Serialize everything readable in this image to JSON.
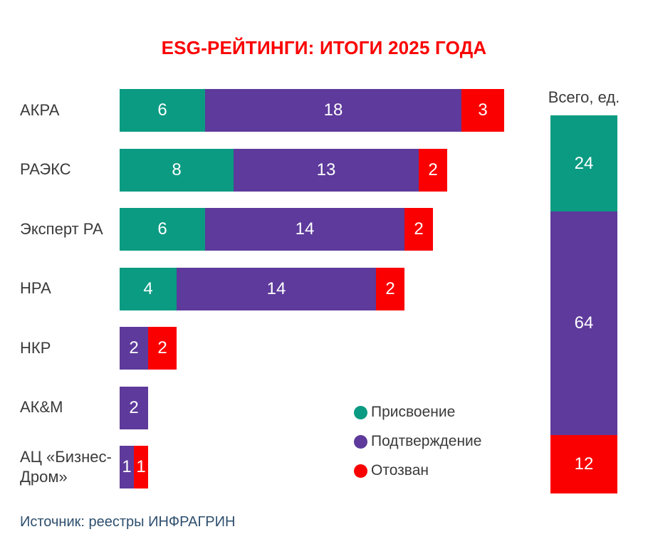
{
  "title": "ESG-РЕЙТИНГИ: ИТОГИ 2025 ГОДА",
  "source": "Источник: реестры ИНФРАГРИН",
  "colors": {
    "assign": "#0a9b82",
    "confirm": "#5d3a9b",
    "revoke": "#fb0000",
    "title_text": "#fa0000",
    "category_label_text": "#3a3a3a",
    "bar_value_text": "#ffffff",
    "source_text": "#2e4f6e"
  },
  "chart_data": {
    "type": "bar",
    "orientation": "horizontal_stacked",
    "grid": false,
    "unit": "ед.",
    "categories": [
      "АКРА",
      "РАЭКС",
      "Эксперт РА",
      "НРА",
      "НКР",
      "АК&М",
      "АЦ «Бизнес-Дром»"
    ],
    "series": [
      {
        "name": "Присвоение",
        "color": "#0a9b82",
        "values": [
          6,
          8,
          6,
          4,
          0,
          0,
          0
        ]
      },
      {
        "name": "Подтверждение",
        "color": "#5d3a9b",
        "values": [
          18,
          13,
          14,
          14,
          2,
          2,
          1
        ]
      },
      {
        "name": "Отозван",
        "color": "#fb0000",
        "values": [
          3,
          2,
          2,
          2,
          2,
          0,
          1
        ]
      }
    ],
    "row_totals": [
      27,
      23,
      22,
      20,
      4,
      2,
      2
    ],
    "totals": {
      "title": "Всего, ед.",
      "segments": [
        {
          "name": "Присвоение",
          "value": 24,
          "color": "#0a9b82"
        },
        {
          "name": "Подтверждение",
          "value": 64,
          "color": "#5d3a9b"
        },
        {
          "name": "Отозван",
          "value": 12,
          "color": "#fb0000"
        }
      ]
    },
    "legend_position": "inside-bottom-right"
  },
  "legend": {
    "items": [
      {
        "label": "Присвоение",
        "color": "#0a9b82"
      },
      {
        "label": "Подтверждение",
        "color": "#5d3a9b"
      },
      {
        "label": "Отозван",
        "color": "#fb0000"
      }
    ]
  }
}
